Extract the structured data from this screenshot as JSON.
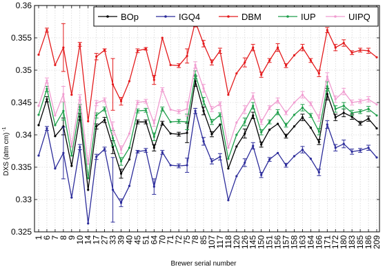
{
  "chart_data": {
    "type": "line",
    "xlabel": "Brewer serial number",
    "ylabel": "DXS (atm cm)",
    "ylabel_sup": "-1",
    "ylim": [
      0.325,
      0.36
    ],
    "yticks": [
      0.325,
      0.33,
      0.335,
      0.34,
      0.345,
      0.35,
      0.355,
      0.36
    ],
    "ytick_labels": [
      "0.325",
      "0.33",
      "0.335",
      "0.34",
      "0.345",
      "0.35",
      "0.355",
      "0.36"
    ],
    "grid": true,
    "legend_position": "top-right",
    "categories": [
      "1",
      "6",
      "7",
      "8",
      "9",
      "10",
      "14",
      "17",
      "27",
      "33",
      "39",
      "40",
      "45",
      "51",
      "64",
      "70",
      "71",
      "72",
      "75",
      "78",
      "85",
      "107",
      "117",
      "118",
      "120",
      "126",
      "145",
      "150",
      "151",
      "156",
      "157",
      "158",
      "163",
      "164",
      "166",
      "171",
      "172",
      "180",
      "183",
      "185",
      "186",
      "209"
    ],
    "series": [
      {
        "name": "BOp",
        "color": "#000000",
        "values": [
          0.3415,
          0.3455,
          0.3398,
          0.3413,
          0.3352,
          0.3428,
          0.3315,
          0.3413,
          0.3423,
          0.3381,
          0.334,
          0.3362,
          0.342,
          0.342,
          0.338,
          0.3418,
          0.3402,
          0.3401,
          0.3403,
          0.3483,
          0.3437,
          0.3401,
          0.3416,
          0.3348,
          0.3382,
          0.3402,
          0.343,
          0.3385,
          0.3408,
          0.3417,
          0.3398,
          0.3413,
          0.3427,
          0.3411,
          0.3389,
          0.3463,
          0.3427,
          0.3434,
          0.3428,
          0.3418,
          0.3425,
          0.341
        ],
        "errors": [
          0,
          0.0004,
          0,
          0.0013,
          0,
          0.0005,
          0,
          0.0004,
          0.0004,
          0.001,
          0.0007,
          0,
          0.0003,
          0.0003,
          0.0005,
          0.0003,
          0,
          0.0003,
          0.0015,
          0.0008,
          0.0006,
          0.0004,
          0,
          0,
          0,
          0.0007,
          0.0005,
          0.0004,
          0,
          0,
          0.0003,
          0,
          0.0005,
          0,
          0.0004,
          0.0009,
          0.0005,
          0.0006,
          0.0004,
          0.0003,
          0.0004,
          0
        ]
      },
      {
        "name": "IGQ4",
        "color": "#2b2b9a",
        "values": [
          0.3368,
          0.341,
          0.3348,
          0.3372,
          0.3303,
          0.3381,
          0.3263,
          0.3366,
          0.3378,
          0.3315,
          0.3295,
          0.3321,
          0.3374,
          0.3376,
          0.332,
          0.3373,
          0.3353,
          0.3352,
          0.3353,
          0.3437,
          0.339,
          0.3359,
          0.3366,
          0.3299,
          0.3336,
          0.3357,
          0.3383,
          0.3338,
          0.3362,
          0.3372,
          0.3353,
          0.3367,
          0.3377,
          0.3363,
          0.3342,
          0.3416,
          0.338,
          0.3386,
          0.3374,
          0.3376,
          0.338,
          0.3365
        ],
        "errors": [
          0,
          0.0003,
          0,
          0.004,
          0,
          0.0004,
          0,
          0.0004,
          0.0003,
          0.005,
          0.0006,
          0,
          0.0002,
          0.0003,
          0.0012,
          0.0003,
          0,
          0.0003,
          0.0011,
          0.0004,
          0.0006,
          0.0004,
          0.0005,
          0,
          0,
          0.0006,
          0.0005,
          0.0004,
          0.0003,
          0,
          0.0003,
          0,
          0.0005,
          0,
          0.0005,
          0.0006,
          0.0005,
          0.0006,
          0.0004,
          0.0003,
          0.0004,
          0
        ]
      },
      {
        "name": "DBM",
        "color": "#e31a1c",
        "values": [
          0.3524,
          0.3562,
          0.3508,
          0.3535,
          0.3462,
          0.354,
          0.3421,
          0.3521,
          0.3531,
          0.3478,
          0.3452,
          0.3483,
          0.353,
          0.3533,
          0.3485,
          0.355,
          0.3508,
          0.3507,
          0.3522,
          0.3575,
          0.3541,
          0.3512,
          0.353,
          0.3462,
          0.3495,
          0.3512,
          0.3535,
          0.3493,
          0.3515,
          0.3535,
          0.3507,
          0.3523,
          0.3535,
          0.3515,
          0.3495,
          0.3562,
          0.3535,
          0.3542,
          0.3527,
          0.3531,
          0.353,
          0.352
        ],
        "errors": [
          0,
          0.0003,
          0,
          0.0037,
          0,
          0.0003,
          0,
          0.0005,
          0.0002,
          0.004,
          0.0006,
          0,
          0.0003,
          0.0002,
          0.0007,
          0,
          0,
          0.0003,
          0.0011,
          0.0008,
          0.0005,
          0.0004,
          0.0004,
          0,
          0,
          0.0007,
          0.0005,
          0.0004,
          0.0003,
          0.0006,
          0.0003,
          0,
          0.0005,
          0.0003,
          0.0005,
          0.0004,
          0.0005,
          0.0005,
          0.0003,
          0.0003,
          0.0004,
          0
        ]
      },
      {
        "name": "IUP",
        "color": "#1e9e4a",
        "values": [
          0.3431,
          0.3471,
          0.3415,
          0.3437,
          0.3368,
          0.3443,
          0.3333,
          0.343,
          0.344,
          0.3395,
          0.3359,
          0.338,
          0.3437,
          0.3438,
          0.3397,
          0.344,
          0.342,
          0.3421,
          0.342,
          0.3493,
          0.3452,
          0.342,
          0.3431,
          0.3363,
          0.34,
          0.342,
          0.3445,
          0.3404,
          0.342,
          0.3435,
          0.3415,
          0.3431,
          0.3442,
          0.343,
          0.3405,
          0.3475,
          0.344,
          0.3445,
          0.3434,
          0.3436,
          0.344,
          0.343
        ],
        "errors": [
          0,
          0.0004,
          0,
          0.0014,
          0,
          0.0004,
          0,
          0.0004,
          0.0003,
          0.0012,
          0.0006,
          0,
          0.0003,
          0.0003,
          0.0006,
          0.0003,
          0,
          0.0003,
          0.0012,
          0.0006,
          0.0006,
          0.0004,
          0.0003,
          0,
          0,
          0.0006,
          0.0005,
          0.0004,
          0.0003,
          0.0004,
          0.0003,
          0,
          0.0005,
          0.0003,
          0.0005,
          0.0007,
          0.0005,
          0.0005,
          0.0004,
          0.0003,
          0.0004,
          0
        ]
      },
      {
        "name": "UIPQ",
        "color": "#f09cd0",
        "values": [
          0.3445,
          0.3484,
          0.343,
          0.3463,
          0.3382,
          0.3458,
          0.3355,
          0.3449,
          0.3454,
          0.341,
          0.3377,
          0.3402,
          0.345,
          0.3452,
          0.3418,
          0.347,
          0.3439,
          0.3436,
          0.344,
          0.3508,
          0.3472,
          0.344,
          0.3448,
          0.338,
          0.3419,
          0.3439,
          0.346,
          0.342,
          0.3442,
          0.3453,
          0.3434,
          0.345,
          0.3462,
          0.3448,
          0.3426,
          0.349,
          0.3455,
          0.3467,
          0.345,
          0.3452,
          0.3455,
          0.3447
        ],
        "errors": [
          0,
          0.0004,
          0,
          0.0012,
          0,
          0.0004,
          0,
          0.0004,
          0.0003,
          0.001,
          0.0006,
          0,
          0.0003,
          0.0003,
          0.0005,
          0.0003,
          0,
          0.0003,
          0.0011,
          0.0005,
          0.0006,
          0.0004,
          0.0003,
          0,
          0,
          0.0006,
          0.0005,
          0.0004,
          0.0003,
          0.0004,
          0.0003,
          0,
          0.0005,
          0.0003,
          0.0005,
          0.0006,
          0.0005,
          0.0005,
          0.0004,
          0.0003,
          0.0004,
          0
        ]
      }
    ]
  }
}
